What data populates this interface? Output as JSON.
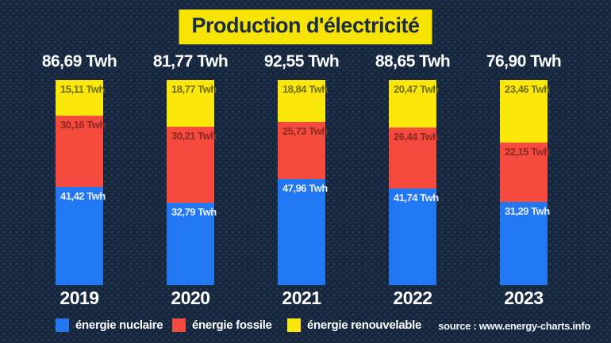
{
  "title": "Production d'électricité",
  "source": "source : www.energy-charts.info",
  "colors": {
    "background": "#16273e",
    "banner_bg": "#f8e403",
    "banner_text": "#1a2b45",
    "text_white": "#ffffff"
  },
  "chart_data": {
    "type": "bar",
    "stacked": true,
    "normalized_height": true,
    "unit": "Twh",
    "title": "Production d'électricité",
    "categories": [
      "2019",
      "2020",
      "2021",
      "2022",
      "2023"
    ],
    "totals": [
      86.69,
      81.77,
      92.55,
      88.65,
      76.9
    ],
    "totals_labels": [
      "86,69 Twh",
      "81,77 Twh",
      "92,55 Twh",
      "88,65 Twh",
      "76,90 Twh"
    ],
    "stack_order_top_to_bottom": [
      "renewable",
      "fossil",
      "nuclear"
    ],
    "legend_position": "bottom",
    "series": [
      {
        "id": "nuclear",
        "name": "énergie nuclaire",
        "color": "#2277f3",
        "label_color": "#e9eefb",
        "values": [
          41.42,
          32.79,
          47.96,
          41.74,
          31.29
        ],
        "value_labels": [
          "41,42 Twh",
          "32,79 Twh",
          "47,96 Twh",
          "41,74 Twh",
          "31,29 Twh"
        ]
      },
      {
        "id": "fossil",
        "name": "énergie fossile",
        "color": "#f54b3e",
        "label_color": "#8e2823",
        "values": [
          30.16,
          30.21,
          25.73,
          26.44,
          22.15
        ],
        "value_labels": [
          "30,16 Twh",
          "30,21 Twh",
          "25,73 Twh",
          "26,44 Twh",
          "22,15 Twh"
        ]
      },
      {
        "id": "renewable",
        "name": "énergie renouvelable",
        "color": "#fbe70c",
        "label_color": "#716e0a",
        "values": [
          15.11,
          18.77,
          18.84,
          20.47,
          23.46
        ],
        "value_labels": [
          "15,11 Twh",
          "18,77 Twh",
          "18,84 Twh",
          "20,47 Twh",
          "23,46 Twh"
        ]
      }
    ]
  }
}
